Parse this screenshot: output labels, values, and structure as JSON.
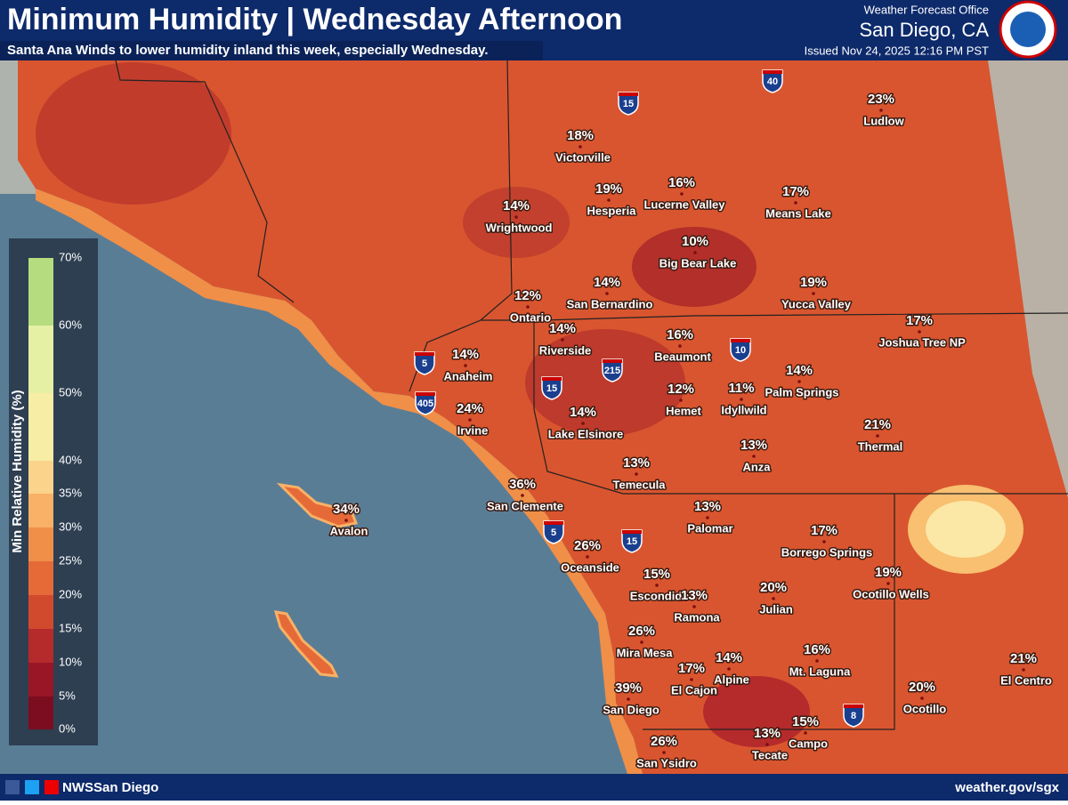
{
  "header": {
    "title": "Minimum Humidity | Wednesday Afternoon",
    "subtitle": "Santa Ana Winds to lower humidity inland this week, especially Wednesday.",
    "office": "Weather Forecast Office",
    "location": "San Diego, CA",
    "issued": "Issued Nov 24, 2025 12:16 PM PST"
  },
  "legend": {
    "title": "Min Relative Humidity (%)",
    "labels": [
      "70%",
      "60%",
      "50%",
      "40%",
      "35%",
      "30%",
      "25%",
      "20%",
      "15%",
      "10%",
      "5%",
      "0%"
    ],
    "colors": [
      "#b5dc7f",
      "#e6f0a4",
      "#f7eda4",
      "#fbd38a",
      "#f8b166",
      "#f08f48",
      "#e56a38",
      "#d24a2e",
      "#b52a2b",
      "#981626",
      "#7c0d20"
    ]
  },
  "cities": [
    {
      "name": "Ludlow",
      "value": "23%"
    },
    {
      "name": "Victorville",
      "value": "18%"
    },
    {
      "name": "Hesperia",
      "value": "19%"
    },
    {
      "name": "Lucerne Valley",
      "value": "16%"
    },
    {
      "name": "Means Lake",
      "value": "17%"
    },
    {
      "name": "Wrightwood",
      "value": "14%"
    },
    {
      "name": "Big Bear Lake",
      "value": "10%"
    },
    {
      "name": "Ontario",
      "value": "12%"
    },
    {
      "name": "San Bernardino",
      "value": "14%"
    },
    {
      "name": "Yucca Valley",
      "value": "19%"
    },
    {
      "name": "Joshua Tree NP",
      "value": "17%"
    },
    {
      "name": "Riverside",
      "value": "14%"
    },
    {
      "name": "Beaumont",
      "value": "16%"
    },
    {
      "name": "Anaheim",
      "value": "14%"
    },
    {
      "name": "Palm Springs",
      "value": "14%"
    },
    {
      "name": "Hemet",
      "value": "12%"
    },
    {
      "name": "Idyllwild",
      "value": "11%"
    },
    {
      "name": "Irvine",
      "value": "24%"
    },
    {
      "name": "Lake Elsinore",
      "value": "14%"
    },
    {
      "name": "Thermal",
      "value": "21%"
    },
    {
      "name": "Anza",
      "value": "13%"
    },
    {
      "name": "Temecula",
      "value": "13%"
    },
    {
      "name": "San Clemente",
      "value": "36%"
    },
    {
      "name": "Avalon",
      "value": "34%"
    },
    {
      "name": "Palomar",
      "value": "13%"
    },
    {
      "name": "Borrego Springs",
      "value": "17%"
    },
    {
      "name": "Oceanside",
      "value": "26%"
    },
    {
      "name": "Ocotillo Wells",
      "value": "19%"
    },
    {
      "name": "Escondido",
      "value": "15%"
    },
    {
      "name": "Ramona",
      "value": "13%"
    },
    {
      "name": "Julian",
      "value": "20%"
    },
    {
      "name": "Mira Mesa",
      "value": "26%"
    },
    {
      "name": "Mt. Laguna",
      "value": "16%"
    },
    {
      "name": "El Cajon",
      "value": "17%"
    },
    {
      "name": "Alpine",
      "value": "14%"
    },
    {
      "name": "El Centro",
      "value": "21%"
    },
    {
      "name": "San Diego",
      "value": "39%"
    },
    {
      "name": "Ocotillo",
      "value": "20%"
    },
    {
      "name": "Campo",
      "value": "15%"
    },
    {
      "name": "Tecate",
      "value": "13%"
    },
    {
      "name": "San Ysidro",
      "value": "26%"
    }
  ],
  "interstates": [
    "15",
    "40",
    "5",
    "405",
    "15",
    "215",
    "10",
    "5",
    "15",
    "8"
  ],
  "footer": {
    "handle": "NWSSan Diego",
    "url": "weather.gov/sgx"
  }
}
